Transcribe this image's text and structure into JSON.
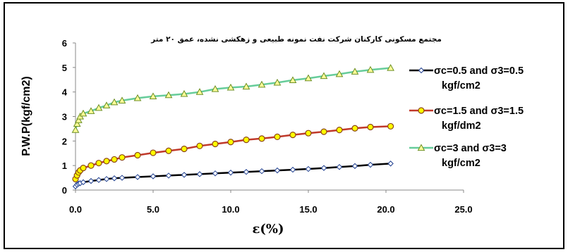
{
  "chart_data": {
    "type": "line",
    "title": "مجتمع مسکونی کارکنان شرکت نفت نمونه طبیعی و زهکشی نشده، عمق ۲۰ متر",
    "xlabel": "ε(%)",
    "ylabel": "P.W.P(kgf/cm2)",
    "xlim": [
      0,
      25
    ],
    "ylim": [
      0,
      6
    ],
    "x_ticks": [
      "0.0",
      "5.0",
      "10.0",
      "15.0",
      "20.0",
      "25.0"
    ],
    "y_ticks": [
      "0",
      "1",
      "2",
      "3",
      "4",
      "5",
      "6"
    ],
    "grid": false,
    "legend_position": "right",
    "series": [
      {
        "name": "σc=0.5  and  σ3=0.5 kgf/cm2",
        "legend_lines": [
          "σc=0.5  and  σ3=0.5",
          "kgf/cm2"
        ],
        "color": "#000000",
        "marker": "diamond",
        "marker_fill": "#ffffff",
        "marker_stroke": "#1f3f8f",
        "x": [
          0.0,
          0.1,
          0.2,
          0.3,
          0.5,
          1.0,
          1.5,
          2.0,
          2.5,
          3.0,
          4.0,
          5.0,
          6.0,
          7.0,
          8.0,
          9.0,
          10.0,
          11.0,
          12.0,
          13.0,
          14.0,
          15.0,
          16.0,
          17.0,
          18.0,
          19.0,
          20.3
        ],
        "y": [
          0.15,
          0.22,
          0.26,
          0.28,
          0.32,
          0.37,
          0.41,
          0.45,
          0.48,
          0.5,
          0.53,
          0.56,
          0.59,
          0.62,
          0.65,
          0.68,
          0.71,
          0.74,
          0.77,
          0.8,
          0.83,
          0.86,
          0.9,
          0.94,
          0.98,
          1.03,
          1.08
        ]
      },
      {
        "name": "σc=1.5  and  σ3=1.5 kgf/dm2",
        "legend_lines": [
          "σc=1.5  and  σ3=1.5",
          "kgf/dm2"
        ],
        "color": "#c0392b",
        "marker": "circle",
        "marker_fill": "#ffff00",
        "marker_stroke": "#8b4513",
        "x": [
          0.0,
          0.1,
          0.2,
          0.3,
          0.5,
          1.0,
          1.5,
          2.0,
          2.5,
          3.0,
          4.0,
          5.0,
          6.0,
          7.0,
          8.0,
          9.0,
          10.0,
          11.0,
          12.0,
          13.0,
          14.0,
          15.0,
          16.0,
          17.0,
          18.0,
          19.0,
          20.3
        ],
        "y": [
          0.45,
          0.6,
          0.72,
          0.8,
          0.9,
          1.0,
          1.1,
          1.18,
          1.25,
          1.33,
          1.42,
          1.52,
          1.6,
          1.68,
          1.8,
          1.88,
          1.96,
          2.05,
          2.1,
          2.17,
          2.25,
          2.32,
          2.38,
          2.45,
          2.52,
          2.57,
          2.6
        ]
      },
      {
        "name": "σc=3  and  σ3=3 kgf/cm2",
        "legend_lines": [
          "σc=3  and  σ3=3",
          "kgf/cm2"
        ],
        "color": "#66cc99",
        "marker": "triangle",
        "marker_fill": "#ffff99",
        "marker_stroke": "#6b8e23",
        "x": [
          0.0,
          0.1,
          0.2,
          0.3,
          0.5,
          1.0,
          1.5,
          2.0,
          2.5,
          3.0,
          4.0,
          5.0,
          6.0,
          7.0,
          8.0,
          9.0,
          10.0,
          11.0,
          12.0,
          13.0,
          14.0,
          15.0,
          16.0,
          17.0,
          18.0,
          19.0,
          20.3
        ],
        "y": [
          2.45,
          2.7,
          2.85,
          3.0,
          3.12,
          3.22,
          3.35,
          3.45,
          3.58,
          3.65,
          3.75,
          3.82,
          3.87,
          3.92,
          4.0,
          4.12,
          4.18,
          4.22,
          4.3,
          4.38,
          4.48,
          4.56,
          4.65,
          4.73,
          4.83,
          4.9,
          4.98
        ]
      }
    ]
  }
}
